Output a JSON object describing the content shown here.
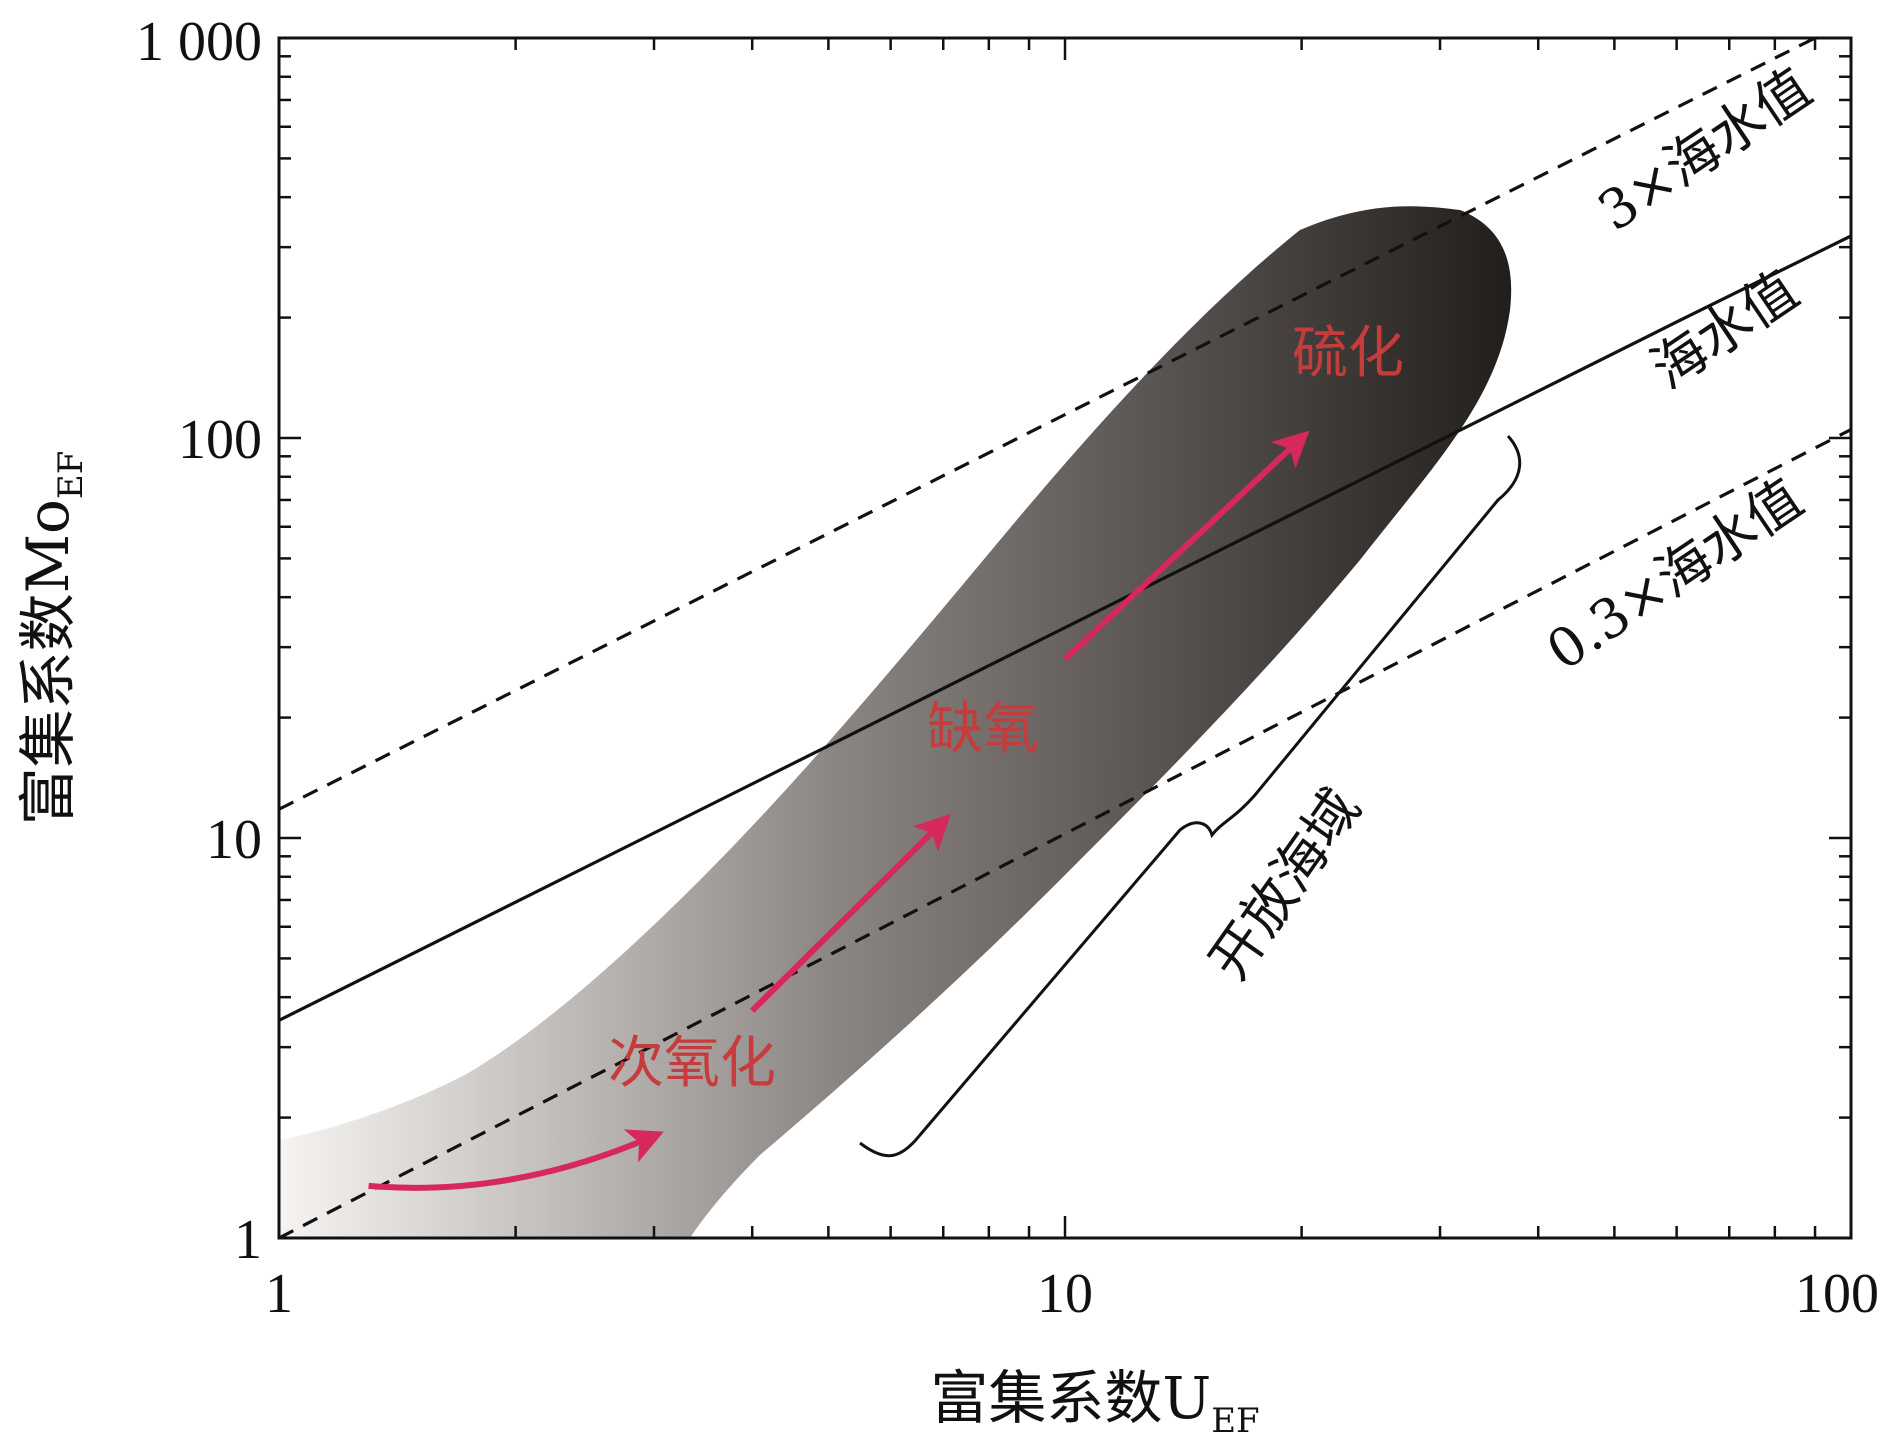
{
  "chart_data": {
    "type": "scatter",
    "x_scale": "log",
    "y_scale": "log",
    "xlim": [
      1,
      100
    ],
    "ylim": [
      1,
      1000
    ],
    "x_ticks": [
      {
        "value": 1,
        "label": "1"
      },
      {
        "value": 10,
        "label": "10"
      },
      {
        "value": 100,
        "label": "100"
      }
    ],
    "y_ticks": [
      {
        "value": 1,
        "label": "1"
      },
      {
        "value": 10,
        "label": "10"
      },
      {
        "value": 100,
        "label": "100"
      },
      {
        "value": 1000,
        "label": "1 000"
      }
    ],
    "xlabel": {
      "main": "富集系数U",
      "sub": "EF"
    },
    "ylabel": {
      "main": "富集系数Mo",
      "sub": "EF"
    },
    "lines": [
      {
        "label": "3×海水值",
        "style": "dashed",
        "points": [
          [
            1,
            11.8
          ],
          [
            90,
            1000
          ]
        ]
      },
      {
        "label": "海水值",
        "style": "solid",
        "points": [
          [
            1,
            3.5
          ],
          [
            60,
            195
          ],
          [
            100,
            320
          ]
        ]
      },
      {
        "label": "0.3×海水值",
        "style": "dashed",
        "points": [
          [
            1,
            1.0
          ],
          [
            100,
            105
          ]
        ]
      }
    ],
    "annotations": [
      {
        "text": "次氧化",
        "x": 3.6,
        "y": 2.5
      },
      {
        "text": "缺氧",
        "x": 8.0,
        "y": 19
      },
      {
        "text": "硫化",
        "x": 21,
        "y": 180
      },
      {
        "text": "开放海域",
        "x": 14,
        "y": 4.8
      }
    ],
    "arrows": [
      {
        "from": [
          1.3,
          1.35
        ],
        "to": [
          3.0,
          1.8
        ]
      },
      {
        "from": [
          4.0,
          3.7
        ],
        "to": [
          7.0,
          11
        ]
      },
      {
        "from": [
          10,
          28
        ],
        "to": [
          20,
          100
        ]
      }
    ],
    "colors": {
      "arrow": "#d6285a",
      "annotation_text": "#c63c3c",
      "line": "#111111",
      "field_light": "#f6f4f2",
      "field_dark": "#221e1c"
    }
  }
}
